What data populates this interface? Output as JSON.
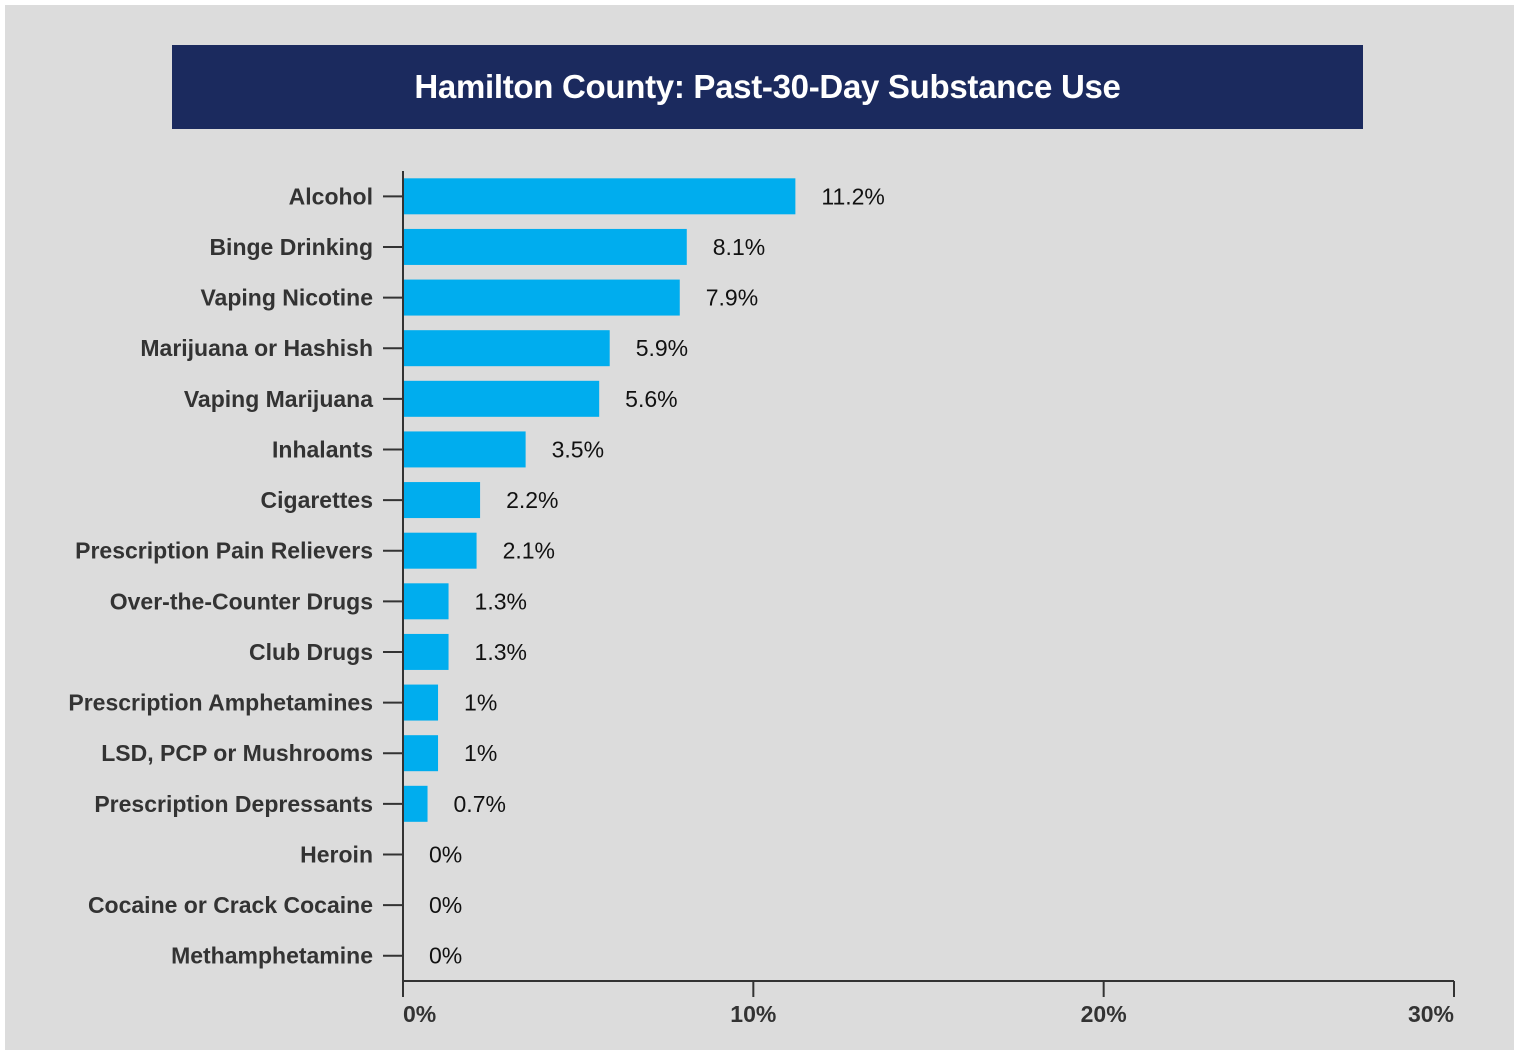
{
  "chart_data": {
    "type": "bar",
    "orientation": "horizontal",
    "title": "Hamilton County: Past-30-Day Substance Use",
    "categories": [
      "Alcohol",
      "Binge Drinking",
      "Vaping Nicotine",
      "Marijuana or Hashish",
      "Vaping Marijuana",
      "Inhalants",
      "Cigarettes",
      "Prescription Pain Relievers",
      "Over-the-Counter Drugs",
      "Club Drugs",
      "Prescription Amphetamines",
      "LSD, PCP or Mushrooms",
      "Prescription Depressants",
      "Heroin",
      "Cocaine or Crack Cocaine",
      "Methamphetamine"
    ],
    "values": [
      11.2,
      8.1,
      7.9,
      5.9,
      5.6,
      3.5,
      2.2,
      2.1,
      1.3,
      1.3,
      1,
      1,
      0.7,
      0,
      0,
      0
    ],
    "value_labels": [
      "11.2%",
      "8.1%",
      "7.9%",
      "5.9%",
      "5.6%",
      "3.5%",
      "2.2%",
      "2.1%",
      "1.3%",
      "1.3%",
      "1%",
      "1%",
      "0.7%",
      "0%",
      "0%",
      "0%"
    ],
    "xlim": [
      0,
      30
    ],
    "x_ticks": [
      0,
      10,
      20,
      30
    ],
    "x_tick_labels": [
      "0%",
      "10%",
      "20%",
      "30%"
    ],
    "xlabel": "",
    "ylabel": "",
    "grid": false,
    "legend": false,
    "colors": {
      "bar": "#00adee",
      "title_background": "#1b2a5e",
      "title_text": "#ffffff",
      "panel_background": "#dcdcdc",
      "axis": "#333333"
    }
  }
}
